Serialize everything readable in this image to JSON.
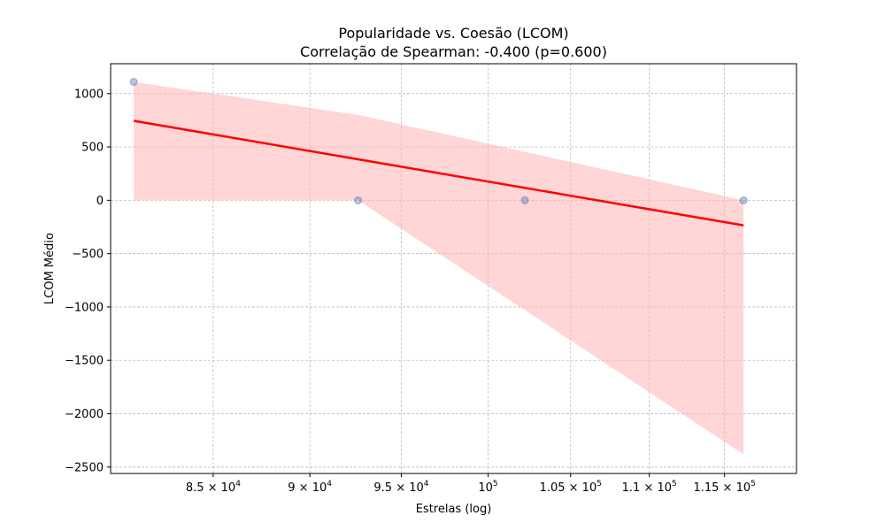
{
  "chart_data": {
    "type": "scatter",
    "title": "Popularidade vs. Coesão (LCOM)",
    "subtitle": "Correlação de Spearman: -0.400 (p=0.600)",
    "xlabel": "Estrelas (log)",
    "ylabel": "LCOM Médio",
    "x_scale": "log",
    "xlim": [
      80000,
      120000
    ],
    "ylim": [
      -2560,
      1280
    ],
    "grid": true,
    "x_ticks": [
      {
        "value": 85000,
        "mantissa": "8.5",
        "times": "×",
        "base": "10",
        "exp": "4"
      },
      {
        "value": 90000,
        "mantissa": "9",
        "times": "×",
        "base": "10",
        "exp": "4"
      },
      {
        "value": 95000,
        "mantissa": "9.5",
        "times": "×",
        "base": "10",
        "exp": "4"
      },
      {
        "value": 100000,
        "mantissa": "",
        "times": "",
        "base": "10",
        "exp": "5"
      },
      {
        "value": 105000,
        "mantissa": "1.05",
        "times": "×",
        "base": "10",
        "exp": "5"
      },
      {
        "value": 110000,
        "mantissa": "1.1",
        "times": "×",
        "base": "10",
        "exp": "5"
      },
      {
        "value": 115000,
        "mantissa": "1.15",
        "times": "×",
        "base": "10",
        "exp": "5"
      }
    ],
    "y_ticks": [
      {
        "value": 1000,
        "label": "1000"
      },
      {
        "value": 500,
        "label": "500"
      },
      {
        "value": 0,
        "label": "0"
      },
      {
        "value": -500,
        "label": "−500"
      },
      {
        "value": -1000,
        "label": "−1000"
      },
      {
        "value": -1500,
        "label": "−1500"
      },
      {
        "value": -2000,
        "label": "−2000"
      },
      {
        "value": -2500,
        "label": "−2500"
      }
    ],
    "points": [
      {
        "x": 81100,
        "y": 1110
      },
      {
        "x": 92600,
        "y": 0
      },
      {
        "x": 102200,
        "y": 0
      },
      {
        "x": 116300,
        "y": 0
      }
    ],
    "regression_line": {
      "x": [
        81100,
        116300
      ],
      "y": [
        745,
        -235
      ]
    },
    "confidence_band": {
      "x": [
        81100,
        92600,
        116300
      ],
      "upper": [
        1110,
        800,
        0
      ],
      "lower": [
        0,
        0,
        -2380
      ]
    },
    "colors": {
      "points": "#4c72b0",
      "line": "#ff0000",
      "band": "#ffb3b3",
      "grid": "#b0b0b0"
    }
  }
}
